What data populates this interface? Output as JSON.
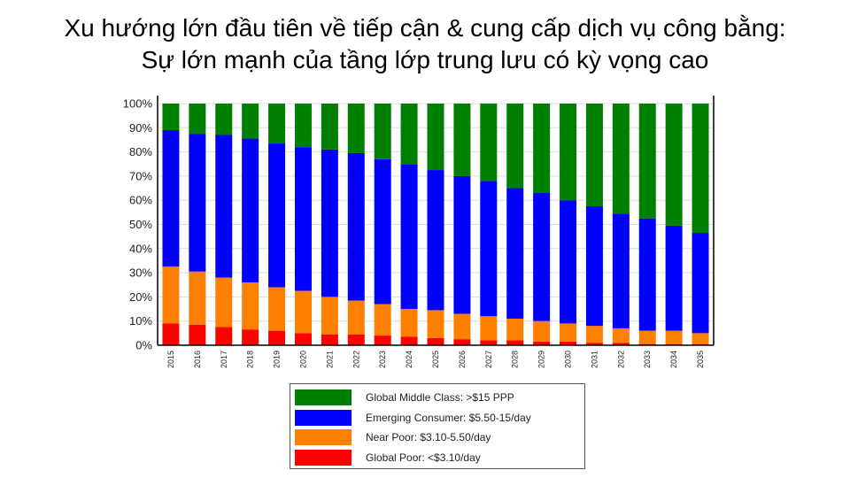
{
  "slide": {
    "title_line1": "Xu hướng lớn đầu tiên về tiếp cận & cung cấp dịch vụ công bằng:",
    "title_line2": "Sự lớn mạnh của tầng lớp trung lưu có kỳ vọng cao"
  },
  "chart_data": {
    "type": "bar",
    "stacked": true,
    "categories": [
      "2015",
      "2016",
      "2017",
      "2018",
      "2019",
      "2020",
      "2021",
      "2022",
      "2023",
      "2024",
      "2025",
      "2026",
      "2027",
      "2028",
      "2029",
      "2030",
      "2031",
      "2032",
      "2033",
      "2034",
      "2035"
    ],
    "series": [
      {
        "name": "Global Poor: <$3.10/day",
        "color": "#ff0000",
        "values": [
          9,
          8.5,
          7.5,
          6.5,
          6,
          5,
          4.5,
          4.5,
          4,
          3.5,
          3,
          2.5,
          2,
          2,
          1.5,
          1.5,
          1,
          1,
          0.5,
          0.5,
          0.5
        ]
      },
      {
        "name": "Near Poor: $3.10-5.50/day",
        "color": "#ff8000",
        "values": [
          23.5,
          22,
          20.5,
          19.5,
          18,
          17.5,
          15.5,
          14,
          13,
          11.5,
          11.5,
          10.5,
          10,
          9,
          8.5,
          7.5,
          7,
          6,
          5.5,
          5.5,
          4.5
        ]
      },
      {
        "name": "Emerging Consumer: $5.50-15/day",
        "color": "#0000ff",
        "values": [
          56.5,
          57,
          59,
          59.5,
          59.5,
          59.5,
          61,
          61,
          60,
          60,
          58,
          57,
          56,
          54,
          53,
          51,
          49.5,
          47.5,
          46.5,
          43.5,
          41.5
        ]
      },
      {
        "name": "Global Middle Class: >$15 PPP",
        "color": "#008000",
        "values": [
          11,
          12.5,
          13,
          14.5,
          16.5,
          18,
          19,
          20.5,
          23,
          25,
          27.5,
          30,
          32,
          35,
          37,
          40,
          42.5,
          45.5,
          47.5,
          50.5,
          53.5
        ]
      }
    ],
    "y_ticks": [
      "0%",
      "10%",
      "20%",
      "30%",
      "40%",
      "50%",
      "60%",
      "70%",
      "80%",
      "90%",
      "100%"
    ],
    "ylim": [
      0,
      100
    ],
    "legend_position": "bottom",
    "grid": true
  }
}
